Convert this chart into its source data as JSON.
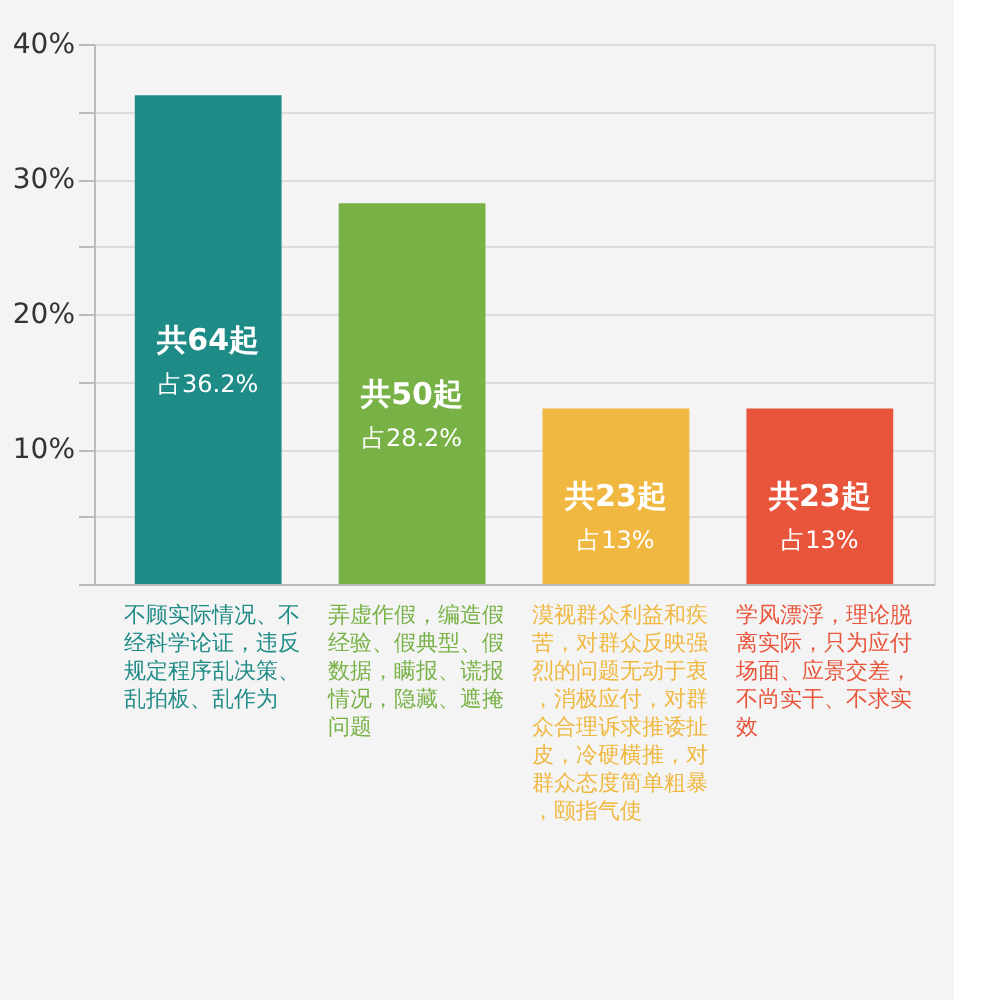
{
  "chart_data": {
    "type": "bar",
    "categories": [
      "不顾实际情况、不经科学论证，违反规定程序乱决策、乱拍板、乱作为",
      "弄虚作假，编造假经验、假典型、假数据，瞒报、谎报情况，隐藏、遮掩问题",
      "漠视群众利益和疾苦，对群众反映强烈的问题无动于衷，消极应付，对群众合理诉求推诿扯皮，冷硬横推，对群众态度简单粗暴，颐指气使",
      "学风漂浮，理论脱离实际，只为应付场面、应景交差，不尚实干、不求实效"
    ],
    "values": [
      36.2,
      28.2,
      13,
      13
    ],
    "colors": [
      "#1f8b86",
      "#78b246",
      "#f0b840",
      "#e9553b"
    ],
    "value_labels": [
      "占36.2%",
      "占28.2%",
      "占13%",
      "占13%"
    ],
    "annotations": [
      "共64起",
      "共50起",
      "共23起",
      "共23起"
    ],
    "ylim": [
      0,
      40
    ],
    "yticks": [
      {
        "value": 0,
        "label": null
      },
      {
        "value": 5,
        "label": null
      },
      {
        "value": 10,
        "label": "10%"
      },
      {
        "value": 15,
        "label": null
      },
      {
        "value": 20,
        "label": "20%"
      },
      {
        "value": 25,
        "label": null
      },
      {
        "value": 30,
        "label": "30%"
      },
      {
        "value": 35,
        "label": null
      },
      {
        "value": 40,
        "label": "40%"
      }
    ],
    "grid": "y"
  }
}
